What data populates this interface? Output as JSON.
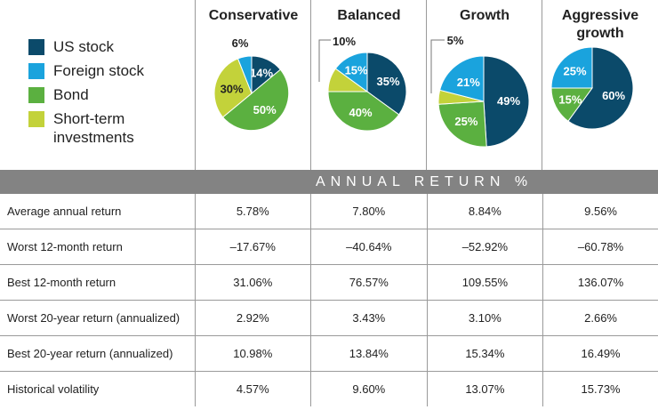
{
  "legend": [
    {
      "label": "US stock",
      "color": "#0b4a6a"
    },
    {
      "label": "Foreign stock",
      "color": "#1aa3dd"
    },
    {
      "label": "Bond",
      "color": "#5bb040"
    },
    {
      "label": "Short-term investments",
      "color": "#c3d23a"
    }
  ],
  "chart_data": {
    "type": "pie",
    "series_names": [
      "US stock",
      "Foreign stock",
      "Bond",
      "Short-term investments"
    ],
    "pies": [
      {
        "title": "Conservative",
        "values": {
          "US stock": 14,
          "Foreign stock": 6,
          "Bond": 50,
          "Short-term investments": 30
        }
      },
      {
        "title": "Balanced",
        "values": {
          "US stock": 35,
          "Foreign stock": 15,
          "Bond": 40,
          "Short-term investments": 10
        }
      },
      {
        "title": "Growth",
        "values": {
          "US stock": 49,
          "Foreign stock": 21,
          "Bond": 25,
          "Short-term investments": 5
        }
      },
      {
        "title": "Aggressive growth",
        "values": {
          "US stock": 60,
          "Foreign stock": 25,
          "Bond": 15,
          "Short-term investments": 0
        }
      }
    ]
  },
  "table": {
    "banner": "ANNUAL RETURN %",
    "rows": [
      {
        "label": "Average annual return",
        "values": [
          "5.78%",
          "7.80%",
          "8.84%",
          "9.56%"
        ]
      },
      {
        "label": "Worst 12-month return",
        "values": [
          "–17.67%",
          "–40.64%",
          "–52.92%",
          "–60.78%"
        ]
      },
      {
        "label": "Best 12-month return",
        "values": [
          "31.06%",
          "76.57%",
          "109.55%",
          "136.07%"
        ]
      },
      {
        "label": "Worst 20-year return (annualized)",
        "values": [
          "2.92%",
          "3.43%",
          "3.10%",
          "2.66%"
        ]
      },
      {
        "label": "Best 20-year return (annualized)",
        "values": [
          "10.98%",
          "13.84%",
          "15.34%",
          "16.49%"
        ]
      },
      {
        "label": "Historical volatility",
        "values": [
          "4.57%",
          "9.60%",
          "13.07%",
          "15.73%"
        ]
      }
    ]
  }
}
